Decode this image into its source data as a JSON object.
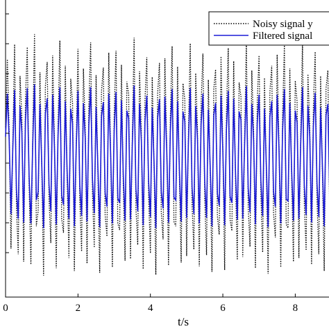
{
  "chart_data": {
    "type": "line",
    "title": "",
    "xlabel": "t/s",
    "ylabel": "",
    "x_ticks": [
      "0",
      "2",
      "4",
      "6",
      "8"
    ],
    "xlim": [
      0,
      9.2
    ],
    "ylim": [
      -1.5,
      1.7
    ],
    "grid": false,
    "legend_position": "top-right",
    "series": [
      {
        "name": "Noisy signal y",
        "color": "#000000",
        "style": "dotted",
        "x_start": 0,
        "x_step": 0.05,
        "values": [
          0.32,
          1.05,
          0.28,
          -0.98,
          0.15,
          1.21,
          -0.52,
          -1.04,
          0.87,
          0.44,
          -1.12,
          0.63,
          1.18,
          -0.31,
          -1.15,
          0.22,
          1.32,
          -0.74,
          -0.58,
          0.91,
          -0.12,
          -1.27,
          0.76,
          1.02,
          -0.45,
          -0.92,
          1.09,
          0.18,
          -1.19,
          0.36,
          1.25,
          -0.66,
          -0.81,
          0.98,
          -0.24,
          -1.08,
          0.84,
          0.58,
          -1.22,
          0.12,
          1.16,
          -0.48,
          -1.01,
          0.95,
          0.33,
          -1.14,
          0.55,
          1.23,
          -0.39,
          -0.97,
          0.88,
          -0.18,
          -1.24,
          0.71,
          0.96,
          -0.62,
          -0.85,
          1.12,
          0.09,
          -1.18,
          0.47,
          1.14,
          -0.71,
          -0.78,
          0.99,
          -0.29,
          -1.11,
          0.81,
          0.67,
          -1.09,
          0.21,
          1.28,
          -0.55,
          -0.94,
          0.92,
          0.27,
          -1.2,
          0.61,
          1.07,
          -0.42,
          -1.03,
          0.86,
          -0.08,
          -1.26,
          0.68,
          1.01,
          -0.59,
          -0.88,
          1.06,
          0.14,
          -1.16,
          0.43,
          1.19,
          -0.69,
          -0.74,
          0.97,
          -0.21,
          -1.13,
          0.79,
          0.62,
          -1.06,
          0.25,
          1.22,
          -0.51,
          -0.99,
          0.9,
          0.31,
          -1.17,
          0.57,
          1.11,
          -0.44,
          -1.05,
          0.83,
          -0.15,
          -1.23,
          0.73,
          0.94,
          -0.63,
          -0.83,
          1.08,
          0.11,
          -1.21,
          0.49,
          1.17,
          -0.67,
          -0.79,
          1.03,
          -0.26,
          -1.1,
          0.8,
          0.65,
          -1.07,
          0.19,
          1.26,
          -0.53,
          -0.96,
          0.93,
          0.29,
          -1.19,
          0.59,
          1.09,
          -0.4,
          -1.02,
          0.85,
          -0.11,
          -1.25,
          0.7,
          0.98,
          -0.6,
          -0.86,
          1.1,
          0.16,
          -1.18,
          0.45,
          1.2,
          -0.72,
          -0.76,
          0.95,
          -0.23,
          -1.12,
          0.82,
          0.6,
          -1.08,
          0.23,
          1.24,
          -0.5,
          -1.0,
          0.89,
          0.35,
          -1.15,
          0.54,
          1.13,
          -0.46,
          -1.04,
          0.87,
          -0.17,
          -1.22,
          0.74,
          0.93,
          -0.64,
          -0.82,
          1.07,
          0.13,
          -1.2
        ]
      },
      {
        "name": "Filtered signal",
        "color": "#1a1ad6",
        "style": "solid",
        "x_start": 0,
        "x_step": 0.05,
        "values": [
          0.22,
          0.68,
          0.19,
          -0.61,
          0.09,
          0.72,
          -0.34,
          -0.66,
          0.55,
          0.27,
          -0.7,
          0.39,
          0.74,
          -0.2,
          -0.71,
          0.13,
          0.78,
          -0.46,
          -0.37,
          0.57,
          -0.08,
          -0.76,
          0.47,
          0.63,
          -0.29,
          -0.58,
          0.67,
          0.11,
          -0.72,
          0.23,
          0.75,
          -0.41,
          -0.51,
          0.6,
          -0.15,
          -0.66,
          0.52,
          0.36,
          -0.74,
          0.08,
          0.71,
          -0.3,
          -0.63,
          0.58,
          0.21,
          -0.69,
          0.34,
          0.75,
          -0.24,
          -0.6,
          0.54,
          -0.11,
          -0.75,
          0.44,
          0.59,
          -0.38,
          -0.53,
          0.68,
          0.06,
          -0.71,
          0.29,
          0.7,
          -0.44,
          -0.49,
          0.61,
          -0.18,
          -0.68,
          0.5,
          0.41,
          -0.67,
          0.13,
          0.77,
          -0.34,
          -0.58,
          0.57,
          0.17,
          -0.73,
          0.38,
          0.66,
          -0.26,
          -0.64,
          0.53,
          -0.05,
          -0.76,
          0.42,
          0.62,
          -0.37,
          -0.55,
          0.65,
          0.09,
          -0.7,
          0.27,
          0.73,
          -0.43,
          -0.46,
          0.6,
          -0.13,
          -0.69,
          0.49,
          0.38,
          -0.65,
          0.16,
          0.74,
          -0.32,
          -0.61,
          0.55,
          0.19,
          -0.71,
          0.35,
          0.68,
          -0.27,
          -0.65,
          0.51,
          -0.09,
          -0.74,
          0.45,
          0.58,
          -0.39,
          -0.52,
          0.66,
          0.07,
          -0.73,
          0.3,
          0.71,
          -0.42,
          -0.49,
          0.63,
          -0.16,
          -0.67,
          0.49,
          0.4,
          -0.66,
          0.12,
          0.76,
          -0.33,
          -0.59,
          0.57,
          0.18,
          -0.72,
          0.36,
          0.67,
          -0.25,
          -0.63,
          0.52,
          -0.07,
          -0.75,
          0.43,
          0.6,
          -0.37,
          -0.53,
          0.67,
          0.1,
          -0.71,
          0.28,
          0.73,
          -0.45,
          -0.47,
          0.58,
          -0.14,
          -0.68,
          0.5,
          0.37,
          -0.66,
          0.14,
          0.75,
          -0.31,
          -0.62,
          0.55,
          0.22,
          -0.7,
          0.33,
          0.69,
          -0.28,
          -0.64,
          0.53,
          -0.1,
          -0.74,
          0.45,
          0.57,
          -0.39,
          -0.51,
          0.66,
          0.08,
          -0.73
        ]
      }
    ]
  }
}
